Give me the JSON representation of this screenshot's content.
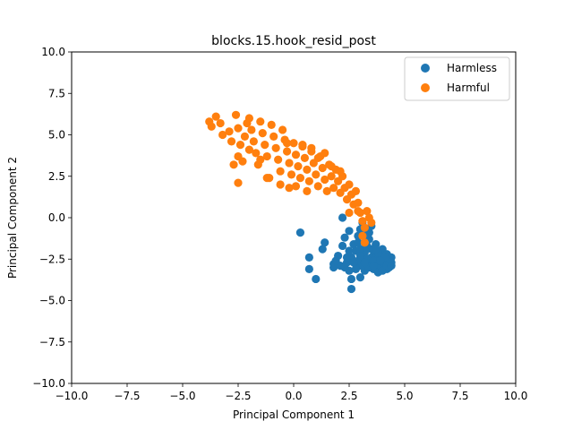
{
  "chart_data": {
    "type": "scatter",
    "title": "blocks.15.hook_resid_post",
    "xlabel": "Principal Component 1",
    "ylabel": "Principal Component 2",
    "xlim": [
      -10,
      10
    ],
    "ylim": [
      -10,
      10
    ],
    "xticks": [
      -10,
      -7.5,
      -5,
      -2.5,
      0,
      2.5,
      5,
      7.5,
      10
    ],
    "yticks": [
      -10,
      -7.5,
      -5,
      -2.5,
      0,
      2.5,
      5,
      7.5,
      10
    ],
    "xtick_labels": [
      "−10.0",
      "−7.5",
      "−5.0",
      "−2.5",
      "0.0",
      "2.5",
      "5.0",
      "7.5",
      "10.0"
    ],
    "ytick_labels": [
      "−10.0",
      "−7.5",
      "−5.0",
      "−2.5",
      "0.0",
      "2.5",
      "5.0",
      "7.5",
      "10.0"
    ],
    "grid": false,
    "legend_position": "top-right",
    "series": [
      {
        "name": "Harmless",
        "color": "#1f77b4",
        "points": [
          [
            0.3,
            -0.9
          ],
          [
            0.7,
            -2.4
          ],
          [
            0.7,
            -3.1
          ],
          [
            1.0,
            -3.7
          ],
          [
            1.3,
            -1.9
          ],
          [
            1.4,
            -1.5
          ],
          [
            1.8,
            -2.8
          ],
          [
            1.8,
            -3.0
          ],
          [
            2.0,
            -2.3
          ],
          [
            2.2,
            -1.7
          ],
          [
            2.3,
            -1.2
          ],
          [
            2.2,
            0.0
          ],
          [
            2.5,
            -0.8
          ],
          [
            2.6,
            -4.3
          ],
          [
            2.6,
            -3.7
          ],
          [
            2.5,
            -3.2
          ],
          [
            2.4,
            -2.7
          ],
          [
            2.6,
            -2.4
          ],
          [
            2.8,
            -2.0
          ],
          [
            2.7,
            -1.6
          ],
          [
            2.9,
            -1.1
          ],
          [
            3.0,
            -0.7
          ],
          [
            3.1,
            -0.3
          ],
          [
            3.0,
            -3.6
          ],
          [
            3.0,
            -2.9
          ],
          [
            3.1,
            -2.5
          ],
          [
            3.2,
            -2.1
          ],
          [
            3.3,
            -1.7
          ],
          [
            3.4,
            -1.3
          ],
          [
            3.4,
            -0.9
          ],
          [
            3.5,
            -0.5
          ],
          [
            3.2,
            -3.2
          ],
          [
            3.4,
            -2.8
          ],
          [
            3.5,
            -2.4
          ],
          [
            3.6,
            -2.0
          ],
          [
            3.7,
            -1.6
          ],
          [
            3.6,
            -3.1
          ],
          [
            3.8,
            -2.7
          ],
          [
            3.9,
            -2.3
          ],
          [
            4.0,
            -1.9
          ],
          [
            3.8,
            -3.3
          ],
          [
            4.0,
            -3.0
          ],
          [
            4.1,
            -2.6
          ],
          [
            4.2,
            -2.2
          ],
          [
            4.3,
            -3.0
          ],
          [
            4.4,
            -2.7
          ],
          [
            4.4,
            -2.4
          ],
          [
            4.2,
            -3.1
          ],
          [
            4.0,
            -2.6
          ],
          [
            3.7,
            -2.4
          ],
          [
            3.5,
            -2.7
          ],
          [
            3.3,
            -2.5
          ],
          [
            3.1,
            -2.9
          ],
          [
            2.9,
            -2.6
          ],
          [
            2.8,
            -3.1
          ],
          [
            3.9,
            -2.9
          ],
          [
            4.1,
            -2.8
          ],
          [
            4.3,
            -2.6
          ],
          [
            3.6,
            -2.6
          ],
          [
            3.8,
            -2.1
          ],
          [
            3.4,
            -3.0
          ],
          [
            3.2,
            -2.7
          ],
          [
            4.0,
            -3.2
          ],
          [
            4.2,
            -2.9
          ],
          [
            3.0,
            -1.9
          ],
          [
            3.5,
            -1.9
          ],
          [
            2.7,
            -2.7
          ],
          [
            2.9,
            -1.5
          ],
          [
            3.3,
            -1.0
          ],
          [
            3.7,
            -1.9
          ],
          [
            4.1,
            -2.4
          ],
          [
            3.9,
            -2.6
          ],
          [
            3.6,
            -2.9
          ],
          [
            2.5,
            -2.0
          ],
          [
            2.4,
            -2.4
          ],
          [
            2.3,
            -3.0
          ],
          [
            2.1,
            -2.9
          ],
          [
            1.9,
            -2.6
          ],
          [
            3.0,
            -2.3
          ],
          [
            4.4,
            -2.9
          ]
        ]
      },
      {
        "name": "Harmful",
        "color": "#ff7f0e",
        "points": [
          [
            -3.8,
            5.8
          ],
          [
            -3.7,
            5.5
          ],
          [
            -3.5,
            6.1
          ],
          [
            -3.2,
            5.0
          ],
          [
            -2.9,
            5.2
          ],
          [
            -2.8,
            4.6
          ],
          [
            -2.6,
            6.2
          ],
          [
            -2.5,
            5.4
          ],
          [
            -2.4,
            4.4
          ],
          [
            -2.7,
            3.2
          ],
          [
            -2.5,
            3.7
          ],
          [
            -2.3,
            3.4
          ],
          [
            -2.2,
            4.9
          ],
          [
            -2.1,
            5.7
          ],
          [
            -2.0,
            6.0
          ],
          [
            -1.9,
            5.3
          ],
          [
            -1.8,
            4.6
          ],
          [
            -1.7,
            3.9
          ],
          [
            -1.6,
            3.2
          ],
          [
            -1.5,
            5.8
          ],
          [
            -1.4,
            5.1
          ],
          [
            -1.3,
            4.4
          ],
          [
            -1.2,
            3.7
          ],
          [
            -1.1,
            2.4
          ],
          [
            -1.0,
            5.6
          ],
          [
            -0.9,
            4.9
          ],
          [
            -0.8,
            4.2
          ],
          [
            -0.7,
            3.5
          ],
          [
            -0.6,
            2.8
          ],
          [
            -0.5,
            5.3
          ],
          [
            -0.4,
            4.7
          ],
          [
            -0.3,
            4.0
          ],
          [
            -0.2,
            3.3
          ],
          [
            -0.1,
            2.6
          ],
          [
            -0.2,
            1.8
          ],
          [
            0.0,
            4.5
          ],
          [
            0.1,
            3.8
          ],
          [
            0.2,
            3.1
          ],
          [
            0.3,
            2.4
          ],
          [
            0.4,
            4.3
          ],
          [
            0.5,
            3.6
          ],
          [
            0.6,
            2.9
          ],
          [
            0.7,
            2.2
          ],
          [
            0.8,
            4.0
          ],
          [
            0.9,
            3.3
          ],
          [
            1.0,
            2.6
          ],
          [
            1.1,
            1.9
          ],
          [
            1.2,
            3.7
          ],
          [
            1.3,
            3.0
          ],
          [
            1.4,
            2.3
          ],
          [
            1.5,
            1.6
          ],
          [
            1.6,
            3.2
          ],
          [
            1.7,
            2.5
          ],
          [
            1.8,
            1.8
          ],
          [
            1.9,
            2.9
          ],
          [
            2.0,
            2.2
          ],
          [
            2.1,
            1.5
          ],
          [
            2.2,
            2.5
          ],
          [
            2.3,
            1.8
          ],
          [
            2.4,
            1.1
          ],
          [
            2.5,
            2.0
          ],
          [
            2.6,
            1.4
          ],
          [
            2.7,
            0.8
          ],
          [
            2.8,
            1.6
          ],
          [
            2.9,
            0.9
          ],
          [
            3.0,
            0.3
          ],
          [
            3.1,
            -0.2
          ],
          [
            3.2,
            -0.6
          ],
          [
            3.3,
            0.4
          ],
          [
            3.5,
            -0.3
          ],
          [
            3.1,
            -1.1
          ],
          [
            3.2,
            -1.5
          ],
          [
            3.4,
            0.0
          ],
          [
            2.5,
            0.3
          ],
          [
            2.9,
            0.4
          ],
          [
            -2.5,
            2.1
          ],
          [
            -1.2,
            2.4
          ],
          [
            -0.6,
            2.0
          ],
          [
            0.1,
            1.9
          ],
          [
            0.6,
            1.6
          ],
          [
            -3.3,
            5.7
          ],
          [
            -2.0,
            4.1
          ],
          [
            -1.5,
            3.5
          ],
          [
            -0.3,
            4.5
          ],
          [
            0.4,
            4.4
          ],
          [
            1.1,
            3.6
          ],
          [
            1.7,
            3.1
          ],
          [
            2.1,
            2.8
          ],
          [
            1.4,
            3.9
          ],
          [
            0.8,
            4.2
          ]
        ]
      }
    ]
  }
}
